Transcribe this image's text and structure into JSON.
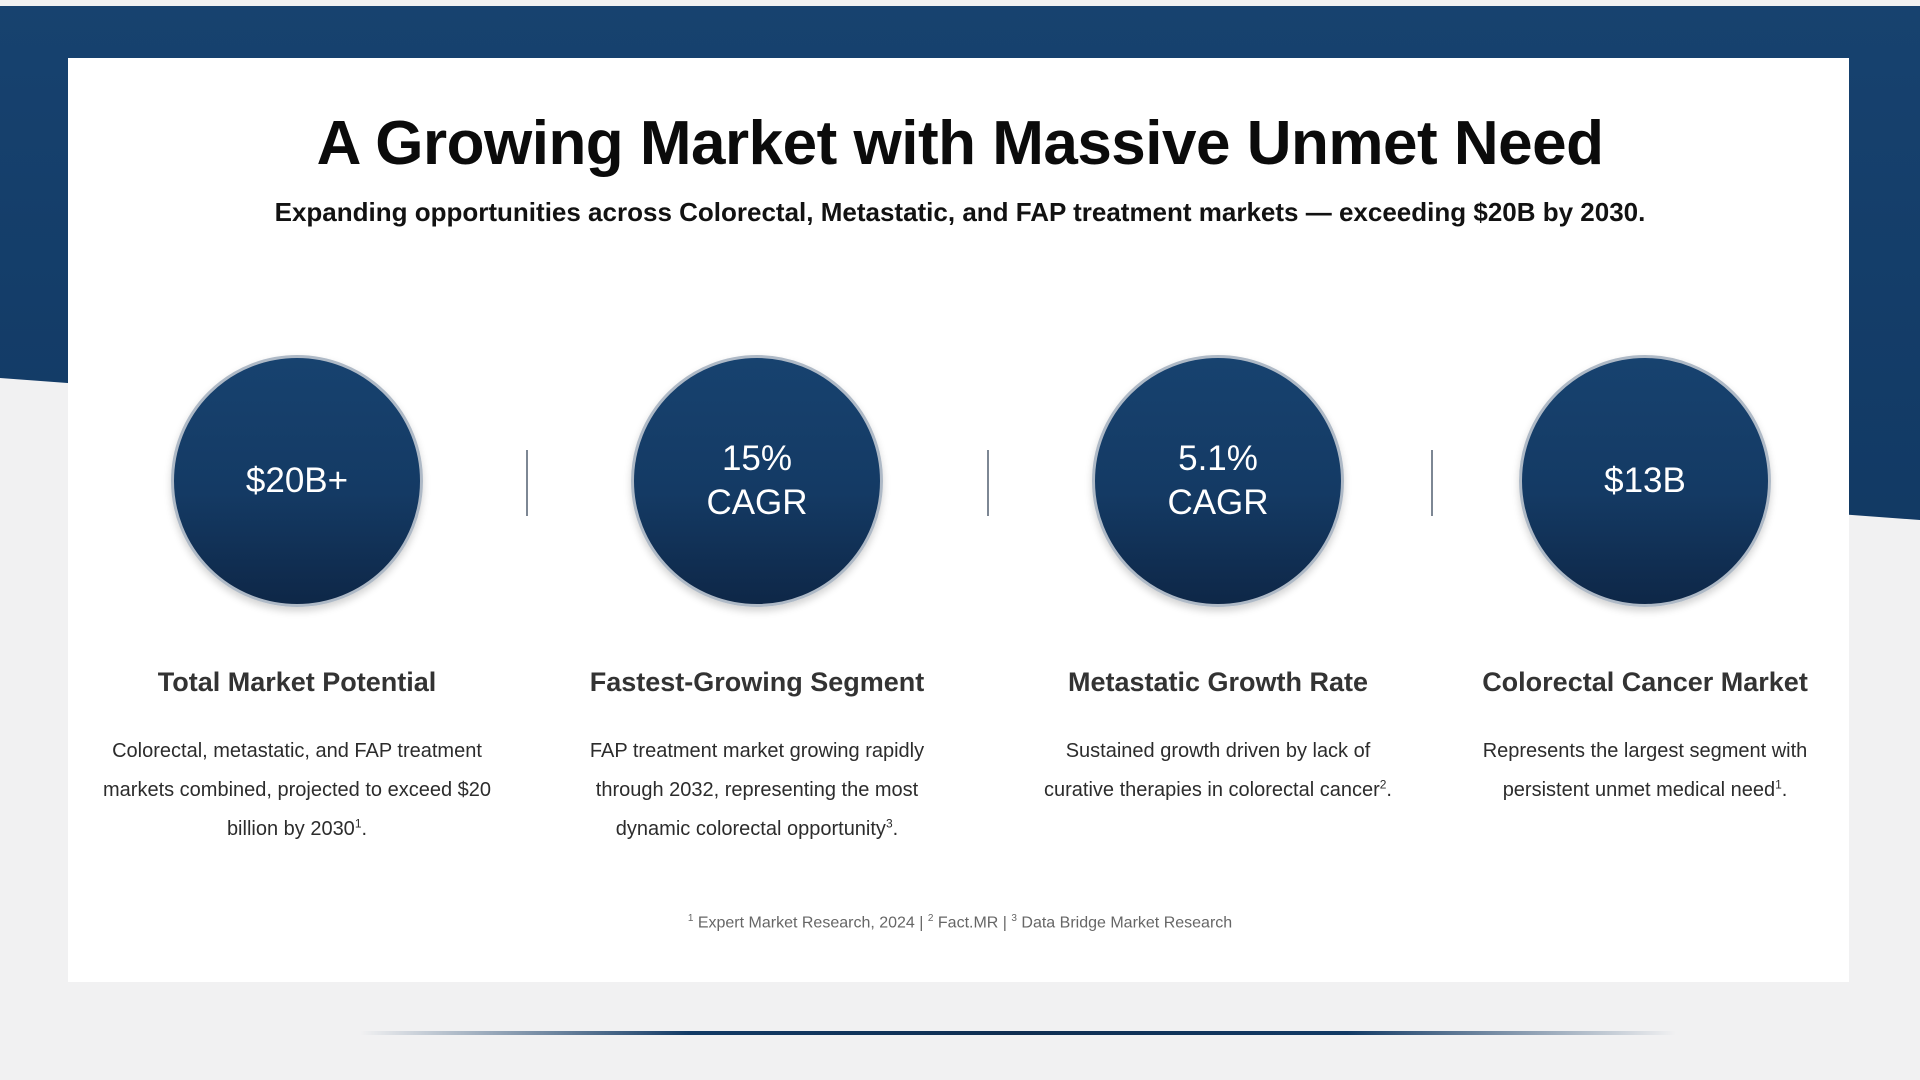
{
  "slide": {
    "title": "A Growing Market with Massive Unmet Need",
    "subtitle": "Expanding opportunities across Colorectal, Metastatic, and FAP treatment markets — exceeding $20B by 2030."
  },
  "stats": [
    {
      "value_line1": "$20B+",
      "value_line2": "",
      "heading": "Total Market Potential",
      "desc_lines": [
        "Colorectal, metastatic, and FAP treatment",
        "markets combined, projected to exceed $20",
        "billion by 2030"
      ],
      "ref": "1"
    },
    {
      "value_line1": "15%",
      "value_line2": "CAGR",
      "heading": "Fastest-Growing Segment",
      "desc_lines": [
        "FAP treatment market growing rapidly",
        "through 2032, representing the most",
        "dynamic colorectal opportunity"
      ],
      "ref": "3"
    },
    {
      "value_line1": "5.1%",
      "value_line2": "CAGR",
      "heading": "Metastatic Growth Rate",
      "desc_lines": [
        "Sustained growth driven by lack of",
        "curative therapies in colorectal cancer"
      ],
      "ref": "2"
    },
    {
      "value_line1": "$13B",
      "value_line2": "",
      "heading": "Colorectal Cancer Market",
      "desc_lines": [
        "Represents the largest segment with",
        "persistent unmet medical need"
      ],
      "ref": "1"
    }
  ],
  "footnotes": [
    {
      "num": "1",
      "source": "Expert Market Research, 2024"
    },
    {
      "num": "2",
      "source": "Fact.MR"
    },
    {
      "num": "3",
      "source": "Data Bridge Market Research"
    }
  ],
  "footnote_separator": " | ",
  "period": ".",
  "colors": {
    "navy": "#123a65",
    "navy_dark": "#0f2e51",
    "circle_border": "#aeb9c6",
    "heading_text": "#333333",
    "footnote_text": "#666666"
  }
}
